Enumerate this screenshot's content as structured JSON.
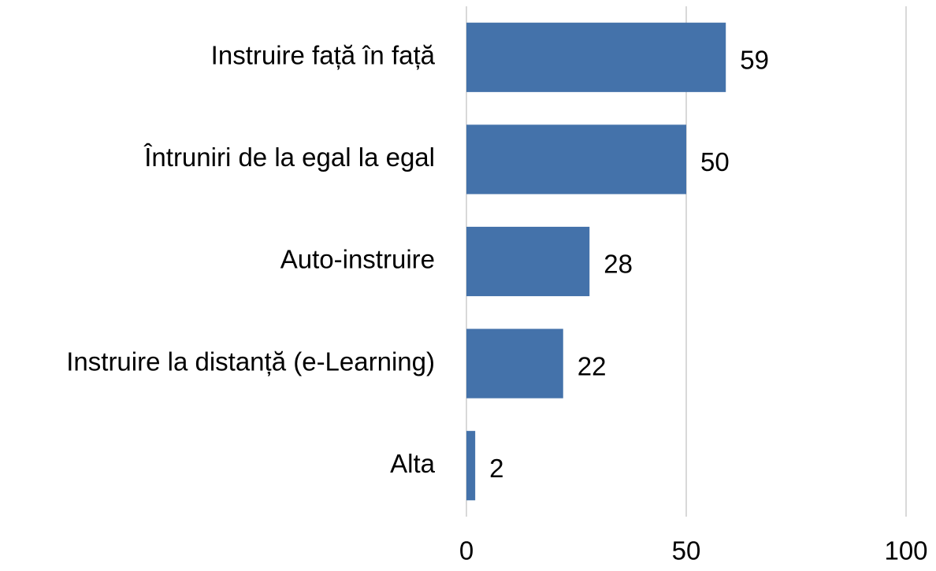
{
  "chart_data": {
    "type": "bar",
    "orientation": "horizontal",
    "categories": [
      "Instruire față în față",
      "Întruniri de la egal la egal",
      "Auto-instruire",
      "Instruire la distanță (e-Learning)",
      "Alta"
    ],
    "values": [
      59,
      50,
      28,
      22,
      2
    ],
    "color": "#4472aa",
    "xlim": [
      0,
      100
    ],
    "xticks": [
      0,
      50,
      100
    ],
    "grid": true
  }
}
